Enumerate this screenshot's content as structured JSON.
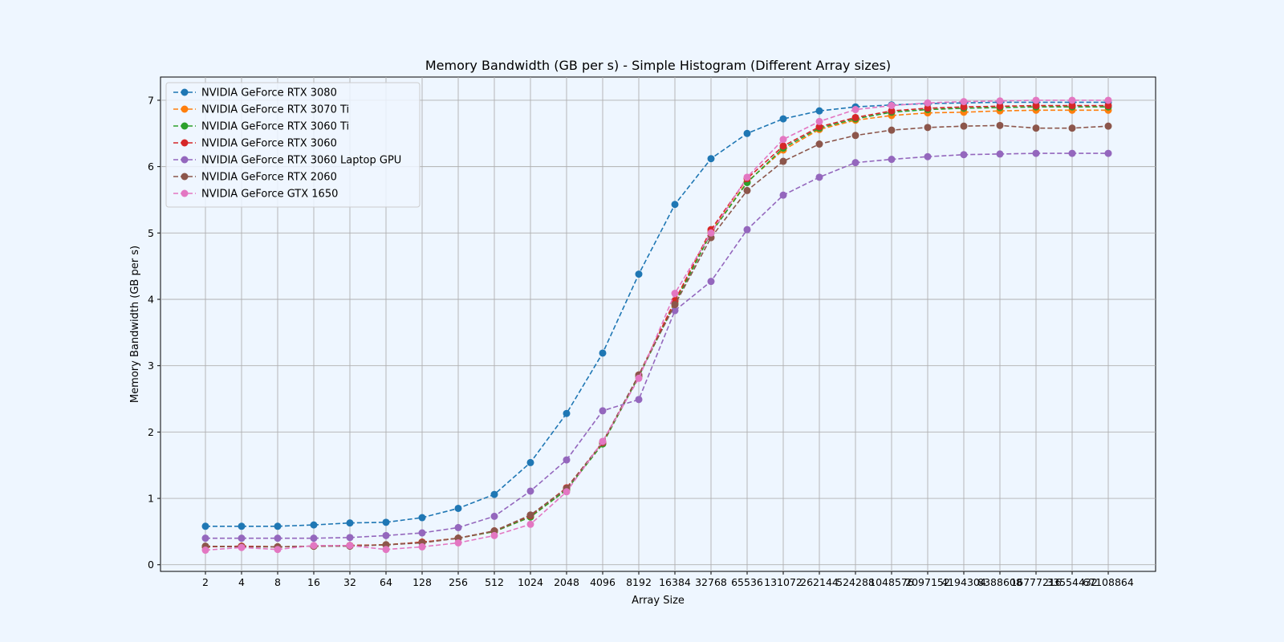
{
  "chart_data": {
    "type": "line",
    "title": "Memory Bandwidth (GB per s) - Simple Histogram (Different Array sizes)",
    "xlabel": "Array Size",
    "ylabel": "Memory Bandwidth (GB per s)",
    "categories": [
      "2",
      "4",
      "8",
      "16",
      "32",
      "64",
      "128",
      "256",
      "512",
      "1024",
      "2048",
      "4096",
      "8192",
      "16384",
      "32768",
      "65536",
      "131072",
      "262144",
      "524288",
      "1048576",
      "2097152",
      "4194304",
      "8388608",
      "16777216",
      "33554432",
      "67108864"
    ],
    "ylim": [
      -0.1,
      7.35
    ],
    "yticks": [
      0,
      1,
      2,
      3,
      4,
      5,
      6,
      7
    ],
    "grid": true,
    "legend_position": "top-left",
    "line_style": "dashed",
    "marker": "circle",
    "series": [
      {
        "name": "NVIDIA GeForce RTX 3080",
        "color": "#1f77b4",
        "values": [
          0.58,
          0.58,
          0.58,
          0.6,
          0.63,
          0.64,
          0.71,
          0.85,
          1.06,
          1.54,
          2.28,
          3.19,
          4.38,
          5.43,
          6.12,
          6.5,
          6.72,
          6.84,
          6.9,
          6.93,
          6.95,
          6.96,
          6.97,
          6.97,
          6.97,
          6.97
        ]
      },
      {
        "name": "NVIDIA GeForce RTX 3070 Ti",
        "color": "#ff7f0e",
        "values": [
          0.27,
          0.28,
          0.27,
          0.28,
          0.29,
          0.3,
          0.34,
          0.4,
          0.5,
          0.72,
          1.13,
          1.84,
          2.84,
          3.97,
          5.02,
          5.77,
          6.25,
          6.56,
          6.7,
          6.77,
          6.81,
          6.82,
          6.84,
          6.85,
          6.85,
          6.85
        ]
      },
      {
        "name": "NVIDIA GeForce RTX 3060 Ti",
        "color": "#2ca02c",
        "values": [
          0.27,
          0.28,
          0.27,
          0.28,
          0.29,
          0.3,
          0.34,
          0.4,
          0.5,
          0.72,
          1.13,
          1.82,
          2.84,
          3.94,
          5.0,
          5.76,
          6.28,
          6.58,
          6.72,
          6.82,
          6.86,
          6.88,
          6.89,
          6.9,
          6.9,
          6.9
        ]
      },
      {
        "name": "NVIDIA GeForce RTX 3060",
        "color": "#d62728",
        "values": [
          0.27,
          0.28,
          0.27,
          0.28,
          0.29,
          0.3,
          0.34,
          0.4,
          0.51,
          0.74,
          1.16,
          1.84,
          2.86,
          3.98,
          5.05,
          5.82,
          6.31,
          6.6,
          6.74,
          6.84,
          6.88,
          6.9,
          6.91,
          6.92,
          6.92,
          6.92
        ]
      },
      {
        "name": "NVIDIA GeForce RTX 3060 Laptop GPU",
        "color": "#9467bd",
        "values": [
          0.4,
          0.4,
          0.4,
          0.4,
          0.41,
          0.44,
          0.48,
          0.56,
          0.73,
          1.11,
          1.58,
          2.32,
          2.49,
          3.83,
          4.27,
          5.05,
          5.57,
          5.84,
          6.06,
          6.11,
          6.15,
          6.18,
          6.19,
          6.2,
          6.2,
          6.2
        ]
      },
      {
        "name": "NVIDIA GeForce RTX 2060",
        "color": "#8c564b",
        "values": [
          0.28,
          0.27,
          0.27,
          0.28,
          0.28,
          0.3,
          0.33,
          0.4,
          0.51,
          0.75,
          1.15,
          1.85,
          2.86,
          3.92,
          4.93,
          5.64,
          6.08,
          6.34,
          6.47,
          6.55,
          6.59,
          6.61,
          6.62,
          6.58,
          6.58,
          6.61
        ]
      },
      {
        "name": "NVIDIA GeForce GTX 1650",
        "color": "#e377c2",
        "values": [
          0.22,
          0.26,
          0.23,
          0.29,
          0.29,
          0.23,
          0.27,
          0.33,
          0.44,
          0.61,
          1.1,
          1.86,
          2.81,
          4.09,
          5.0,
          5.84,
          6.41,
          6.68,
          6.86,
          6.92,
          6.96,
          6.98,
          6.99,
          7.0,
          7.0,
          7.0
        ]
      }
    ]
  }
}
